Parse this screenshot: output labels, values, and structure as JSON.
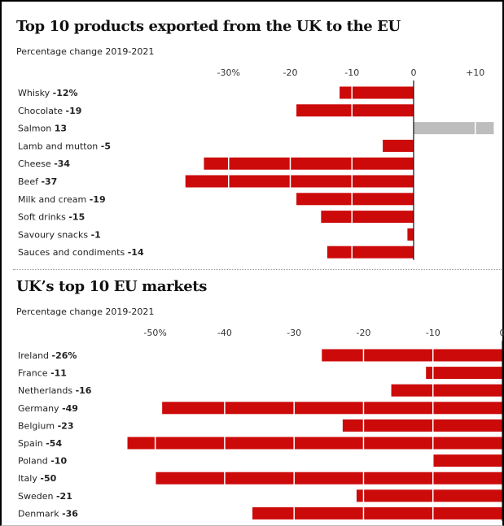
{
  "chart_data": [
    {
      "type": "bar",
      "title": "Top 10 products exported from the UK to the EU",
      "subtitle": "Percentage change 2019-2021",
      "categories": [
        "Whisky",
        "Chocolate",
        "Salmon",
        "Lamb and mutton",
        "Cheese",
        "Beef",
        "Milk and cream",
        "Soft drinks",
        "Savoury snacks",
        "Sauces and condiments"
      ],
      "value_labels": [
        "-12%",
        "-19",
        "13",
        "-5",
        "-34",
        "-37",
        "-19",
        "-15",
        "-1",
        "-14"
      ],
      "values": [
        -12,
        -19,
        13,
        -5,
        -34,
        -37,
        -19,
        -15,
        -1,
        -14
      ],
      "xlim": [
        -40,
        14
      ],
      "ticks": [
        -30,
        -20,
        -10,
        0,
        10
      ],
      "tick_labels": [
        "-30%",
        "-20",
        "-10",
        "0",
        "+10"
      ],
      "grid": true,
      "colors": {
        "negative": "#cc0a0a",
        "positive": "#bdbdbd"
      }
    },
    {
      "type": "bar",
      "title": "UK’s top 10 EU markets",
      "subtitle": "Percentage change 2019-2021",
      "categories": [
        "Ireland",
        "France",
        "Netherlands",
        "Germany",
        "Belgium",
        "Spain",
        "Poland",
        "Italy",
        "Sweden",
        "Denmark"
      ],
      "value_labels": [
        "-26%",
        "-11",
        "-16",
        "-49",
        "-23",
        "-54",
        "-10",
        "-50",
        "-21",
        "-36"
      ],
      "values": [
        -26,
        -11,
        -16,
        -49,
        -23,
        -54,
        -10,
        -50,
        -21,
        -36
      ],
      "xlim": [
        -55,
        0
      ],
      "ticks": [
        -50,
        -40,
        -30,
        -20,
        -10,
        0
      ],
      "tick_labels": [
        "-50%",
        "-40",
        "-30",
        "-20",
        "-10",
        "0"
      ],
      "grid": true,
      "colors": {
        "negative": "#cc0a0a",
        "positive": "#bdbdbd"
      }
    }
  ]
}
